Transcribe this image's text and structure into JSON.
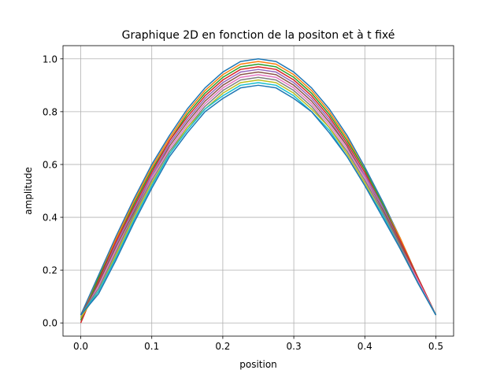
{
  "chart_data": {
    "type": "line",
    "title": "Graphique 2D en fonction de la positon et à t fixé",
    "xlabel": "position",
    "ylabel": "amplitude",
    "xlim": [
      -0.025,
      0.525
    ],
    "ylim": [
      -0.05,
      1.05
    ],
    "xticks": [
      0.0,
      0.1,
      0.2,
      0.3,
      0.4,
      0.5
    ],
    "xtick_labels": [
      "0.0",
      "0.1",
      "0.2",
      "0.3",
      "0.4",
      "0.5"
    ],
    "yticks": [
      0.0,
      0.2,
      0.4,
      0.6,
      0.8,
      1.0
    ],
    "ytick_labels": [
      "0.0",
      "0.2",
      "0.4",
      "0.6",
      "0.8",
      "1.0"
    ],
    "grid": true,
    "legend": false,
    "colors": [
      "#1f77b4",
      "#ff7f0e",
      "#2ca02c",
      "#d62728",
      "#9467bd",
      "#8c564b",
      "#e377c2",
      "#7f7f7f",
      "#bcbd22",
      "#17becf"
    ],
    "x": [
      0.0,
      0.025,
      0.05,
      0.075,
      0.1,
      0.125,
      0.15,
      0.175,
      0.2,
      0.225,
      0.25,
      0.275,
      0.3,
      0.325,
      0.35,
      0.375,
      0.4,
      0.425,
      0.45,
      0.475,
      0.5
    ],
    "series": [
      {
        "values": [
          0.03,
          0.18,
          0.33,
          0.47,
          0.6,
          0.71,
          0.81,
          0.89,
          0.95,
          0.99,
          1.0,
          0.99,
          0.95,
          0.89,
          0.81,
          0.71,
          0.59,
          0.46,
          0.32,
          0.17,
          0.03
        ]
      },
      {
        "values": [
          0.02,
          0.17,
          0.32,
          0.46,
          0.59,
          0.7,
          0.8,
          0.88,
          0.94,
          0.98,
          0.99,
          0.98,
          0.94,
          0.88,
          0.8,
          0.7,
          0.58,
          0.45,
          0.32,
          0.17,
          0.03
        ]
      },
      {
        "values": [
          0.01,
          0.17,
          0.31,
          0.45,
          0.58,
          0.69,
          0.79,
          0.87,
          0.93,
          0.97,
          0.98,
          0.97,
          0.93,
          0.87,
          0.79,
          0.69,
          0.58,
          0.45,
          0.31,
          0.17,
          0.03
        ]
      },
      {
        "values": [
          0.0,
          0.16,
          0.31,
          0.44,
          0.57,
          0.69,
          0.78,
          0.86,
          0.92,
          0.96,
          0.97,
          0.96,
          0.92,
          0.86,
          0.78,
          0.68,
          0.57,
          0.44,
          0.31,
          0.17,
          0.03
        ]
      },
      {
        "values": [
          0.02,
          0.15,
          0.3,
          0.43,
          0.56,
          0.68,
          0.77,
          0.85,
          0.91,
          0.95,
          0.96,
          0.95,
          0.91,
          0.85,
          0.77,
          0.67,
          0.56,
          0.44,
          0.3,
          0.16,
          0.03
        ]
      },
      {
        "values": [
          0.03,
          0.15,
          0.29,
          0.42,
          0.55,
          0.67,
          0.76,
          0.84,
          0.9,
          0.94,
          0.95,
          0.94,
          0.9,
          0.84,
          0.76,
          0.67,
          0.55,
          0.43,
          0.3,
          0.16,
          0.03
        ]
      },
      {
        "values": [
          0.02,
          0.14,
          0.28,
          0.41,
          0.55,
          0.66,
          0.75,
          0.83,
          0.89,
          0.93,
          0.94,
          0.93,
          0.89,
          0.83,
          0.75,
          0.66,
          0.55,
          0.42,
          0.29,
          0.16,
          0.03
        ]
      },
      {
        "values": [
          0.03,
          0.13,
          0.27,
          0.41,
          0.54,
          0.65,
          0.74,
          0.82,
          0.88,
          0.92,
          0.93,
          0.92,
          0.88,
          0.82,
          0.74,
          0.65,
          0.54,
          0.42,
          0.29,
          0.15,
          0.03
        ]
      },
      {
        "values": [
          0.02,
          0.12,
          0.26,
          0.4,
          0.53,
          0.64,
          0.74,
          0.81,
          0.87,
          0.91,
          0.92,
          0.91,
          0.87,
          0.81,
          0.74,
          0.64,
          0.53,
          0.41,
          0.28,
          0.15,
          0.03
        ]
      },
      {
        "values": [
          0.03,
          0.12,
          0.25,
          0.39,
          0.52,
          0.64,
          0.73,
          0.81,
          0.86,
          0.9,
          0.91,
          0.9,
          0.86,
          0.8,
          0.73,
          0.63,
          0.52,
          0.41,
          0.28,
          0.15,
          0.03
        ]
      },
      {
        "values": [
          0.03,
          0.11,
          0.24,
          0.38,
          0.51,
          0.63,
          0.72,
          0.8,
          0.85,
          0.89,
          0.9,
          0.89,
          0.85,
          0.8,
          0.72,
          0.63,
          0.52,
          0.4,
          0.28,
          0.15,
          0.03
        ]
      }
    ]
  }
}
